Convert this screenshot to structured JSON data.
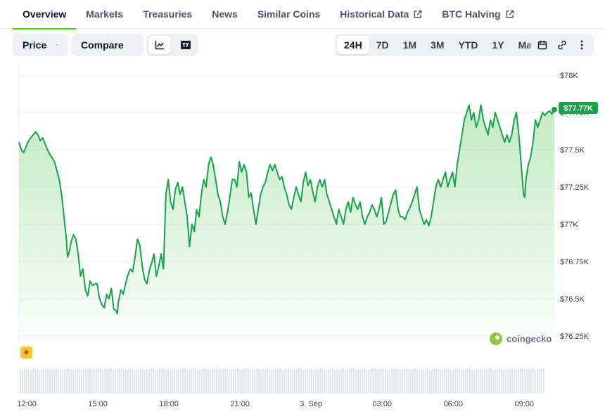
{
  "tabs": [
    {
      "label": "Overview",
      "active": true,
      "external": false
    },
    {
      "label": "Markets",
      "active": false,
      "external": false
    },
    {
      "label": "Treasuries",
      "active": false,
      "external": false
    },
    {
      "label": "News",
      "active": false,
      "external": false
    },
    {
      "label": "Similar Coins",
      "active": false,
      "external": false
    },
    {
      "label": "Historical Data",
      "active": false,
      "external": true
    },
    {
      "label": "BTC Halving",
      "active": false,
      "external": true
    }
  ],
  "toolbar": {
    "price_label": "Price",
    "compare_label": "Compare",
    "chart_types": [
      {
        "icon": "line-chart-icon",
        "active": true
      },
      {
        "icon": "tradingview-icon",
        "active": false
      }
    ],
    "ranges": [
      {
        "label": "24H",
        "active": true
      },
      {
        "label": "7D",
        "active": false
      },
      {
        "label": "1M",
        "active": false
      },
      {
        "label": "3M",
        "active": false
      },
      {
        "label": "YTD",
        "active": false
      },
      {
        "label": "1Y",
        "active": false
      },
      {
        "label": "Max",
        "active": false
      }
    ],
    "actions": [
      "calendar-icon",
      "link-icon",
      "more-vertical-icon"
    ]
  },
  "colors": {
    "line": "#16a34a",
    "area_top": "#8fd88f",
    "badge": "#16a34a",
    "tab_underline": "#4bcc00",
    "volume": "#e3e6ea"
  },
  "chart_data": {
    "type": "area",
    "current_price_label": "$77.77K",
    "watermark": "coingecko",
    "ylim": [
      76250,
      78000
    ],
    "y_ticks": [
      {
        "value": 78000,
        "label": "$78K"
      },
      {
        "value": 77750,
        "label": "$77.75K"
      },
      {
        "value": 77500,
        "label": "$77.5K"
      },
      {
        "value": 77250,
        "label": "$77.25K"
      },
      {
        "value": 77000,
        "label": "$77K"
      },
      {
        "value": 76750,
        "label": "$76.75K"
      },
      {
        "value": 76500,
        "label": "$76.5K"
      },
      {
        "value": 76250,
        "label": "$76.25K"
      }
    ],
    "x_ticks": [
      {
        "label": "12:00",
        "hour": 0
      },
      {
        "label": "15:00",
        "hour": 3
      },
      {
        "label": "18:00",
        "hour": 6
      },
      {
        "label": "21:00",
        "hour": 9
      },
      {
        "label": "3. Sep",
        "hour": 12
      },
      {
        "label": "03:00",
        "hour": 15
      },
      {
        "label": "06:00",
        "hour": 18
      },
      {
        "label": "09:00",
        "hour": 21
      }
    ],
    "series": [
      {
        "points": [
          [
            -0.3,
            77550
          ],
          [
            -0.2,
            77500
          ],
          [
            -0.1,
            77480
          ],
          [
            0.0,
            77520
          ],
          [
            0.1,
            77560
          ],
          [
            0.2,
            77580
          ],
          [
            0.3,
            77600
          ],
          [
            0.4,
            77620
          ],
          [
            0.5,
            77600
          ],
          [
            0.6,
            77560
          ],
          [
            0.7,
            77580
          ],
          [
            0.8,
            77540
          ],
          [
            0.9,
            77500
          ],
          [
            1.0,
            77470
          ],
          [
            1.2,
            77420
          ],
          [
            1.4,
            77300
          ],
          [
            1.5,
            77200
          ],
          [
            1.6,
            77050
          ],
          [
            1.7,
            76900
          ],
          [
            1.75,
            76780
          ],
          [
            1.8,
            76800
          ],
          [
            1.9,
            76880
          ],
          [
            2.0,
            76930
          ],
          [
            2.1,
            76900
          ],
          [
            2.2,
            76800
          ],
          [
            2.3,
            76650
          ],
          [
            2.4,
            76700
          ],
          [
            2.5,
            76560
          ],
          [
            2.6,
            76520
          ],
          [
            2.7,
            76620
          ],
          [
            2.8,
            76590
          ],
          [
            2.9,
            76600
          ],
          [
            3.0,
            76600
          ],
          [
            3.1,
            76500
          ],
          [
            3.2,
            76460
          ],
          [
            3.3,
            76440
          ],
          [
            3.4,
            76530
          ],
          [
            3.5,
            76500
          ],
          [
            3.6,
            76570
          ],
          [
            3.7,
            76430
          ],
          [
            3.8,
            76420
          ],
          [
            3.85,
            76400
          ],
          [
            3.9,
            76480
          ],
          [
            4.0,
            76560
          ],
          [
            4.1,
            76530
          ],
          [
            4.2,
            76600
          ],
          [
            4.3,
            76660
          ],
          [
            4.4,
            76700
          ],
          [
            4.5,
            76680
          ],
          [
            4.6,
            76780
          ],
          [
            4.7,
            76900
          ],
          [
            4.8,
            76860
          ],
          [
            4.9,
            76720
          ],
          [
            5.0,
            76630
          ],
          [
            5.1,
            76600
          ],
          [
            5.2,
            76690
          ],
          [
            5.3,
            76740
          ],
          [
            5.4,
            76800
          ],
          [
            5.5,
            76650
          ],
          [
            5.6,
            76720
          ],
          [
            5.7,
            76800
          ],
          [
            5.8,
            76700
          ],
          [
            5.9,
            77200
          ],
          [
            6.0,
            77300
          ],
          [
            6.1,
            77150
          ],
          [
            6.2,
            77100
          ],
          [
            6.3,
            77230
          ],
          [
            6.4,
            77280
          ],
          [
            6.5,
            77200
          ],
          [
            6.6,
            77250
          ],
          [
            6.7,
            77150
          ],
          [
            6.8,
            77050
          ],
          [
            6.9,
            76850
          ],
          [
            7.0,
            77000
          ],
          [
            7.1,
            76950
          ],
          [
            7.2,
            77100
          ],
          [
            7.3,
            77050
          ],
          [
            7.4,
            77200
          ],
          [
            7.5,
            77300
          ],
          [
            7.6,
            77250
          ],
          [
            7.7,
            77400
          ],
          [
            7.8,
            77450
          ],
          [
            7.9,
            77400
          ],
          [
            8.0,
            77300
          ],
          [
            8.1,
            77200
          ],
          [
            8.2,
            77150
          ],
          [
            8.3,
            77050
          ],
          [
            8.4,
            77000
          ],
          [
            8.5,
            77080
          ],
          [
            8.6,
            77180
          ],
          [
            8.7,
            77300
          ],
          [
            8.8,
            77300
          ],
          [
            8.9,
            77250
          ],
          [
            9.0,
            77420
          ],
          [
            9.1,
            77350
          ],
          [
            9.2,
            77400
          ],
          [
            9.3,
            77350
          ],
          [
            9.4,
            77180
          ],
          [
            9.5,
            77210
          ],
          [
            9.6,
            77100
          ],
          [
            9.7,
            77000
          ],
          [
            9.8,
            77100
          ],
          [
            9.9,
            77200
          ],
          [
            10.0,
            77250
          ],
          [
            10.1,
            77280
          ],
          [
            10.2,
            77350
          ],
          [
            10.3,
            77400
          ],
          [
            10.4,
            77360
          ],
          [
            10.5,
            77400
          ],
          [
            10.6,
            77350
          ],
          [
            10.7,
            77300
          ],
          [
            10.8,
            77320
          ],
          [
            10.9,
            77250
          ],
          [
            11.0,
            77200
          ],
          [
            11.1,
            77130
          ],
          [
            11.2,
            77100
          ],
          [
            11.3,
            77180
          ],
          [
            11.4,
            77250
          ],
          [
            11.5,
            77200
          ],
          [
            11.6,
            77150
          ],
          [
            11.7,
            77280
          ],
          [
            11.8,
            77350
          ],
          [
            11.9,
            77260
          ],
          [
            12.0,
            77300
          ],
          [
            12.1,
            77220
          ],
          [
            12.2,
            77150
          ],
          [
            12.3,
            77250
          ],
          [
            12.4,
            77300
          ],
          [
            12.5,
            77250
          ],
          [
            12.6,
            77300
          ],
          [
            12.7,
            77200
          ],
          [
            12.8,
            77150
          ],
          [
            12.9,
            77100
          ],
          [
            13.0,
            77050
          ],
          [
            13.1,
            77000
          ],
          [
            13.2,
            77100
          ],
          [
            13.3,
            77050
          ],
          [
            13.4,
            77000
          ],
          [
            13.5,
            77100
          ],
          [
            13.6,
            77150
          ],
          [
            13.7,
            77080
          ],
          [
            13.8,
            77180
          ],
          [
            13.9,
            77130
          ],
          [
            14.0,
            77100
          ],
          [
            14.1,
            77150
          ],
          [
            14.2,
            77050
          ],
          [
            14.3,
            77000
          ],
          [
            14.4,
            77050
          ],
          [
            14.5,
            77080
          ],
          [
            14.6,
            77130
          ],
          [
            14.7,
            77100
          ],
          [
            14.8,
            77050
          ],
          [
            14.9,
            77100
          ],
          [
            15.0,
            77180
          ],
          [
            15.1,
            77000
          ],
          [
            15.2,
            77020
          ],
          [
            15.3,
            77080
          ],
          [
            15.4,
            77140
          ],
          [
            15.5,
            77200
          ],
          [
            15.6,
            77230
          ],
          [
            15.7,
            77100
          ],
          [
            15.8,
            77050
          ],
          [
            15.9,
            77050
          ],
          [
            16.0,
            77030
          ],
          [
            16.1,
            77080
          ],
          [
            16.2,
            77110
          ],
          [
            16.3,
            77150
          ],
          [
            16.4,
            77200
          ],
          [
            16.5,
            77250
          ],
          [
            16.6,
            77100
          ],
          [
            16.7,
            77050
          ],
          [
            16.8,
            77000
          ],
          [
            16.9,
            77030
          ],
          [
            17.0,
            76990
          ],
          [
            17.1,
            77050
          ],
          [
            17.2,
            77150
          ],
          [
            17.3,
            77250
          ],
          [
            17.4,
            77300
          ],
          [
            17.5,
            77250
          ],
          [
            17.6,
            77300
          ],
          [
            17.7,
            77350
          ],
          [
            17.8,
            77250
          ],
          [
            17.9,
            77300
          ],
          [
            18.0,
            77350
          ],
          [
            18.1,
            77250
          ],
          [
            18.2,
            77400
          ],
          [
            18.3,
            77500
          ],
          [
            18.4,
            77600
          ],
          [
            18.5,
            77700
          ],
          [
            18.6,
            77750
          ],
          [
            18.7,
            77800
          ],
          [
            18.8,
            77700
          ],
          [
            18.9,
            77750
          ],
          [
            19.0,
            77650
          ],
          [
            19.1,
            77700
          ],
          [
            19.2,
            77800
          ],
          [
            19.3,
            77700
          ],
          [
            19.4,
            77650
          ],
          [
            19.5,
            77600
          ],
          [
            19.6,
            77700
          ],
          [
            19.7,
            77650
          ],
          [
            19.8,
            77750
          ],
          [
            19.9,
            77700
          ],
          [
            20.0,
            77650
          ],
          [
            20.1,
            77600
          ],
          [
            20.2,
            77550
          ],
          [
            20.3,
            77600
          ],
          [
            20.4,
            77550
          ],
          [
            20.5,
            77600
          ],
          [
            20.6,
            77700
          ],
          [
            20.7,
            77750
          ],
          [
            20.8,
            77600
          ],
          [
            20.9,
            77400
          ],
          [
            21.0,
            77200
          ],
          [
            21.05,
            77180
          ],
          [
            21.1,
            77300
          ],
          [
            21.2,
            77400
          ],
          [
            21.3,
            77450
          ],
          [
            21.4,
            77550
          ],
          [
            21.5,
            77700
          ],
          [
            21.6,
            77650
          ],
          [
            21.7,
            77700
          ],
          [
            21.8,
            77750
          ],
          [
            21.9,
            77730
          ],
          [
            22.0,
            77750
          ],
          [
            22.1,
            77760
          ],
          [
            22.2,
            77740
          ],
          [
            22.3,
            77770
          ]
        ]
      }
    ]
  }
}
